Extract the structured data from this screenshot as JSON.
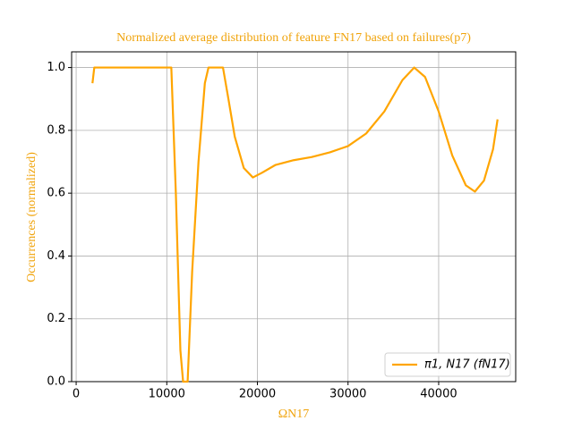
{
  "chart_data": {
    "type": "line",
    "title": "Normalized average distribution of feature FN17 based on failures(p7)",
    "xlabel": "ΩN17",
    "ylabel": "Occurrences (normalized)",
    "x": [
      1800,
      2000,
      10500,
      11000,
      11500,
      11800,
      12300,
      12800,
      13500,
      14200,
      14600,
      16200,
      16800,
      17500,
      18500,
      19500,
      20500,
      22000,
      24000,
      26000,
      28000,
      30000,
      32000,
      34000,
      36000,
      37300,
      38500,
      40000,
      41500,
      43000,
      44000,
      45000,
      46000,
      46500
    ],
    "series": [
      {
        "name": "π1, N17 (fN17)",
        "color": "#ffa500",
        "values": [
          0.95,
          1.0,
          1.0,
          0.6,
          0.1,
          0.0,
          0.0,
          0.35,
          0.7,
          0.95,
          1.0,
          1.0,
          0.9,
          0.78,
          0.68,
          0.65,
          0.665,
          0.69,
          0.705,
          0.715,
          0.73,
          0.75,
          0.79,
          0.86,
          0.96,
          1.0,
          0.97,
          0.86,
          0.72,
          0.625,
          0.605,
          0.64,
          0.74,
          0.835
        ]
      }
    ],
    "xlim": [
      -500,
      48500
    ],
    "ylim": [
      0,
      1.05
    ],
    "xticks": [
      0,
      10000,
      20000,
      30000,
      40000
    ],
    "yticks": [
      {
        "value": 0,
        "label": "0.0"
      },
      {
        "value": 0.2,
        "label": "0.2"
      },
      {
        "value": 0.4,
        "label": "0.4"
      },
      {
        "value": 0.6,
        "label": "0.6"
      },
      {
        "value": 0.8,
        "label": "0.8"
      },
      {
        "value": 1,
        "label": "1.0"
      }
    ],
    "grid": true,
    "legend": "lower right",
    "label_color": "#f0a30a"
  }
}
